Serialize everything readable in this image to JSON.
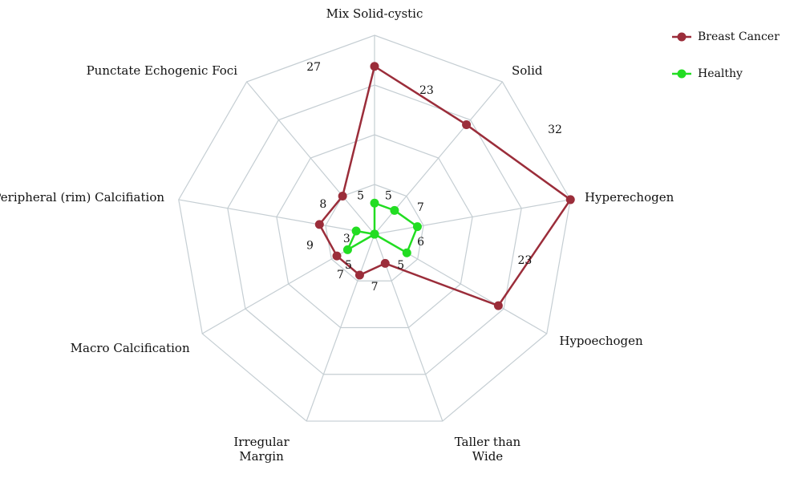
{
  "chart_data": {
    "type": "radar",
    "categories": [
      "Mix Solid-cystic",
      "Solid",
      "Hyperechogen",
      "Hypoechogen",
      "Taller than Wide",
      "Irregular Margin",
      "Macro Calcification",
      "Peripheral (rim) Calcifiation",
      "Punctate Echogenic Foci"
    ],
    "series": [
      {
        "name": "Breast Cancer",
        "color": "#9b2d3a",
        "values": [
          27,
          23,
          32,
          23,
          5,
          7,
          7,
          9,
          8
        ]
      },
      {
        "name": "Healthy",
        "color": "#22dd22",
        "values": [
          5,
          5,
          7,
          6,
          0,
          0,
          5,
          3,
          0
        ]
      }
    ],
    "ylim": [
      0,
      32
    ],
    "yticks": [
      0,
      8,
      16,
      24,
      32
    ],
    "grid": true,
    "legend": "top-right"
  }
}
